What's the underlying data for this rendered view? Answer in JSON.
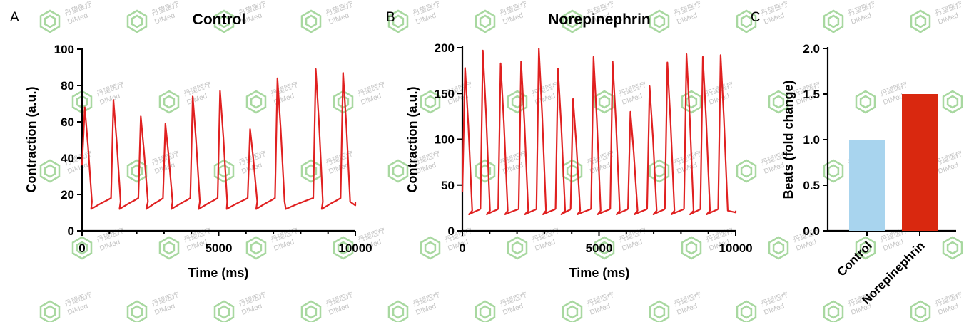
{
  "watermark": {
    "text_cn": "丹望医疗",
    "text_en": "DIMed",
    "hex_color": "#a8d8a0"
  },
  "panels": {
    "A": {
      "letter": "A",
      "title": "Control",
      "xlabel": "Time (ms)",
      "ylabel": "Contraction (a.u.)"
    },
    "B": {
      "letter": "B",
      "title": "Norepinephrin",
      "xlabel": "Time (ms)",
      "ylabel": "Contraction (a.u.)"
    },
    "C": {
      "letter": "C",
      "title": "",
      "xlabel": "",
      "ylabel": "Beats (fold change)"
    }
  },
  "chart_data": [
    {
      "type": "line",
      "title": "Control",
      "xlabel": "Time (ms)",
      "ylabel": "Contraction (a.u.)",
      "xlim": [
        0,
        10000
      ],
      "ylim": [
        0,
        100
      ],
      "xticks": [
        0,
        5000,
        10000
      ],
      "yticks": [
        0,
        20,
        40,
        60,
        80,
        100
      ],
      "grid": false,
      "series": [
        {
          "color": "#e02020",
          "peaks": [
            {
              "t": 100,
              "peak": 68
            },
            {
              "t": 1150,
              "peak": 72
            },
            {
              "t": 2150,
              "peak": 63
            },
            {
              "t": 3050,
              "peak": 59
            },
            {
              "t": 4050,
              "peak": 74
            },
            {
              "t": 5050,
              "peak": 77
            },
            {
              "t": 6150,
              "peak": 56
            },
            {
              "t": 7150,
              "peak": 84
            },
            {
              "t": 8550,
              "peak": 89
            },
            {
              "t": 9550,
              "peak": 87
            }
          ],
          "baseline": 14
        }
      ]
    },
    {
      "type": "line",
      "title": "Norepinephrin",
      "xlabel": "Time (ms)",
      "ylabel": "Contraction (a.u.)",
      "xlim": [
        0,
        10000
      ],
      "ylim": [
        0,
        200
      ],
      "xticks": [
        0,
        5000,
        10000
      ],
      "yticks": [
        0,
        50,
        100,
        150,
        200
      ],
      "grid": false,
      "series": [
        {
          "color": "#e02020",
          "peaks": [
            {
              "t": 100,
              "peak": 178
            },
            {
              "t": 750,
              "peak": 197
            },
            {
              "t": 1400,
              "peak": 183
            },
            {
              "t": 2150,
              "peak": 185
            },
            {
              "t": 2800,
              "peak": 199
            },
            {
              "t": 3500,
              "peak": 177
            },
            {
              "t": 4050,
              "peak": 144
            },
            {
              "t": 4800,
              "peak": 190
            },
            {
              "t": 5500,
              "peak": 185
            },
            {
              "t": 6150,
              "peak": 130
            },
            {
              "t": 6850,
              "peak": 158
            },
            {
              "t": 7500,
              "peak": 184
            },
            {
              "t": 8200,
              "peak": 193
            },
            {
              "t": 8800,
              "peak": 190
            },
            {
              "t": 9450,
              "peak": 192
            }
          ],
          "baseline": 20
        }
      ]
    },
    {
      "type": "bar",
      "title": "",
      "xlabel": "",
      "ylabel": "Beats (fold change)",
      "categories": [
        "Control",
        "Norepinephrin"
      ],
      "values": [
        1.0,
        1.5
      ],
      "colors": [
        "#a8d4ee",
        "#d9280f"
      ],
      "ylim": [
        0,
        2.0
      ],
      "yticks": [
        0.0,
        0.5,
        1.0,
        1.5,
        2.0
      ],
      "ytick_labels": [
        "0.0",
        "0.5",
        "1.0",
        "1.5",
        "2.0"
      ],
      "grid": false
    }
  ]
}
